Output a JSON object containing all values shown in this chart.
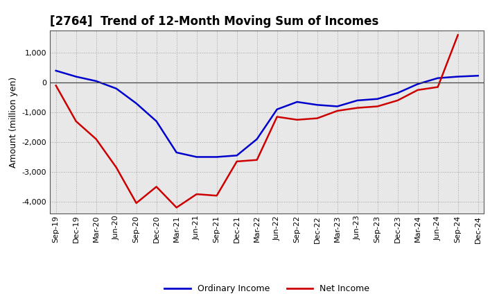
{
  "title": "[2764]  Trend of 12-Month Moving Sum of Incomes",
  "ylabel": "Amount (million yen)",
  "x_labels": [
    "Sep-19",
    "Dec-19",
    "Mar-20",
    "Jun-20",
    "Sep-20",
    "Dec-20",
    "Mar-21",
    "Jun-21",
    "Sep-21",
    "Dec-21",
    "Mar-22",
    "Jun-22",
    "Sep-22",
    "Dec-22",
    "Mar-23",
    "Jun-23",
    "Sep-23",
    "Dec-23",
    "Mar-24",
    "Jun-24",
    "Sep-24",
    "Dec-24"
  ],
  "ordinary_income": [
    400,
    200,
    50,
    -200,
    -700,
    -1300,
    -2350,
    -2500,
    -2500,
    -2450,
    -1900,
    -900,
    -650,
    -750,
    -800,
    -600,
    -550,
    -350,
    -50,
    150,
    200,
    230
  ],
  "net_income": [
    -100,
    -1300,
    -1900,
    -2850,
    -4050,
    -3500,
    -4200,
    -3750,
    -3800,
    -2650,
    -2600,
    -1150,
    -1250,
    -1200,
    -950,
    -850,
    -800,
    -600,
    -250,
    -150,
    1600,
    null
  ],
  "ordinary_income_color": "#0000cc",
  "net_income_color": "#cc0000",
  "ylim_min": -4400,
  "ylim_max": 1750,
  "yticks": [
    -4000,
    -3000,
    -2000,
    -1000,
    0,
    1000
  ],
  "plot_bg_color": "#e8e8e8",
  "fig_bg_color": "#ffffff",
  "grid_color": "#999999",
  "zero_line_color": "#444444",
  "line_width": 1.8,
  "title_fontsize": 12,
  "axis_label_fontsize": 9,
  "tick_fontsize": 8,
  "legend_fontsize": 9
}
